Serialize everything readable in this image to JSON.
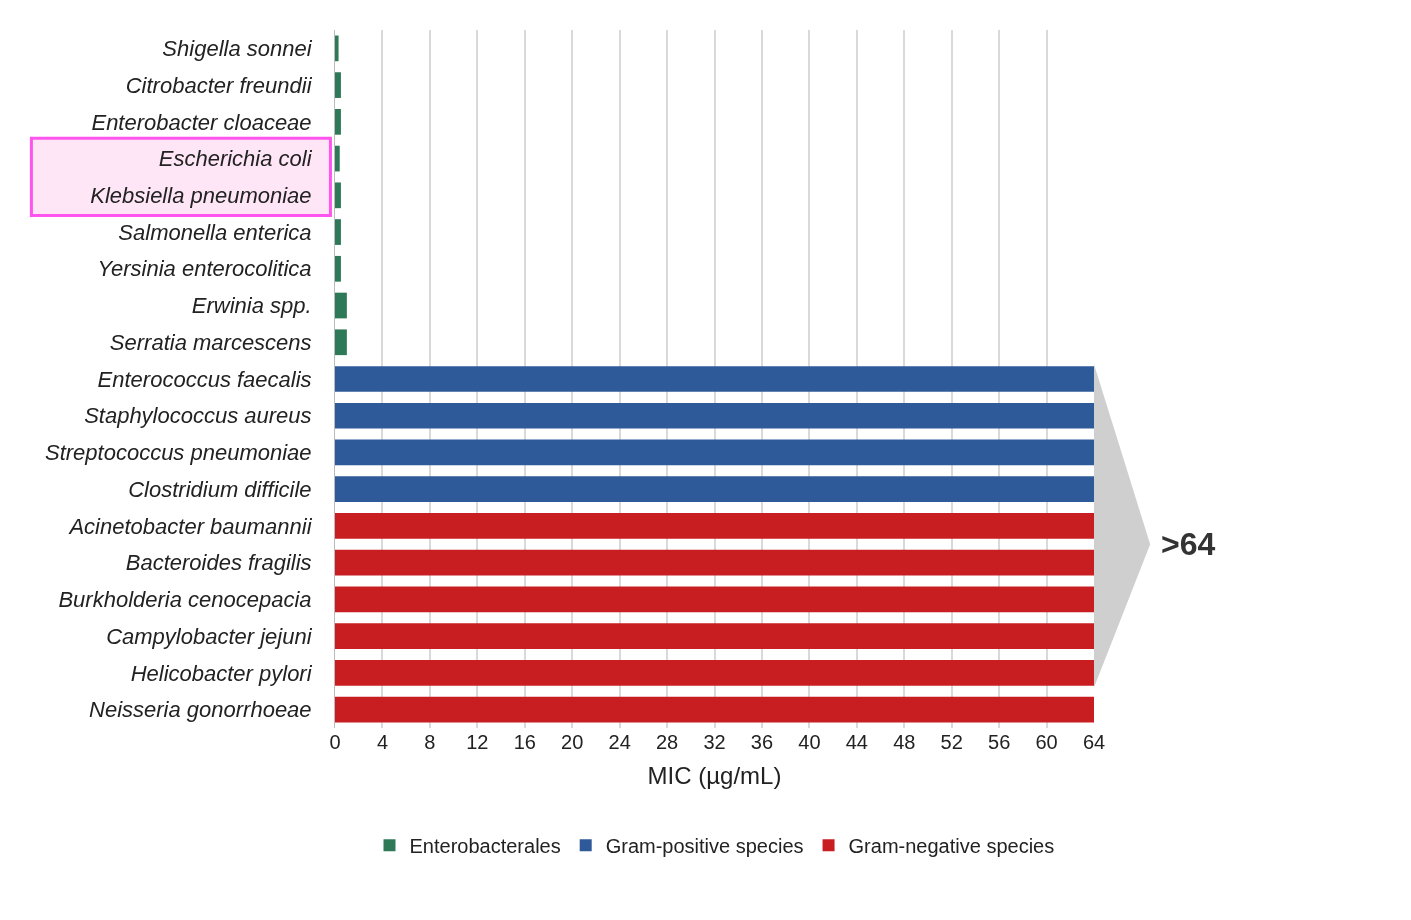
{
  "chart_data": {
    "type": "bar",
    "orientation": "horizontal",
    "xlabel": "MIC (µg/mL)",
    "categories": [
      "Shigella sonnei",
      "Citrobacter freundii",
      "Enterobacter cloaceae",
      "Escherichia coli",
      "Klebsiella pneumoniae",
      "Salmonella enterica",
      "Yersinia enterocolitica",
      "Erwinia spp.",
      "Serratia marcescens",
      "Enterococcus faecalis",
      "Staphylococcus aureus",
      "Streptococcus pneumoniae",
      "Clostridium difficile",
      "Acinetobacter baumannii",
      "Bacteroides fragilis",
      "Burkholderia cenocepacia",
      "Campylobacter jejuni",
      "Helicobacter pylori",
      "Neisseria gonorrhoeae"
    ],
    "series": [
      {
        "name": "Enterobacterales",
        "color": "#2e7a58",
        "values": [
          0.3,
          0.5,
          0.5,
          0.4,
          0.5,
          0.5,
          0.5,
          1,
          1,
          null,
          null,
          null,
          null,
          null,
          null,
          null,
          null,
          null,
          null
        ]
      },
      {
        "name": "Gram-positive species",
        "color": "#2f5a9a",
        "values": [
          null,
          null,
          null,
          null,
          null,
          null,
          null,
          null,
          null,
          64,
          64,
          64,
          64,
          null,
          null,
          null,
          null,
          null,
          null
        ]
      },
      {
        "name": "Gram-negative species",
        "color": "#c81e22",
        "values": [
          null,
          null,
          null,
          null,
          null,
          null,
          null,
          null,
          null,
          null,
          null,
          null,
          null,
          64,
          64,
          64,
          64,
          64,
          64
        ]
      }
    ],
    "xlim": [
      0,
      64
    ],
    "xticks": [
      0,
      4,
      8,
      12,
      16,
      20,
      24,
      28,
      32,
      36,
      40,
      44,
      48,
      52,
      56,
      60,
      64
    ],
    "grid": "x",
    "legend": "bottom",
    "annotations": [
      ">64"
    ]
  }
}
